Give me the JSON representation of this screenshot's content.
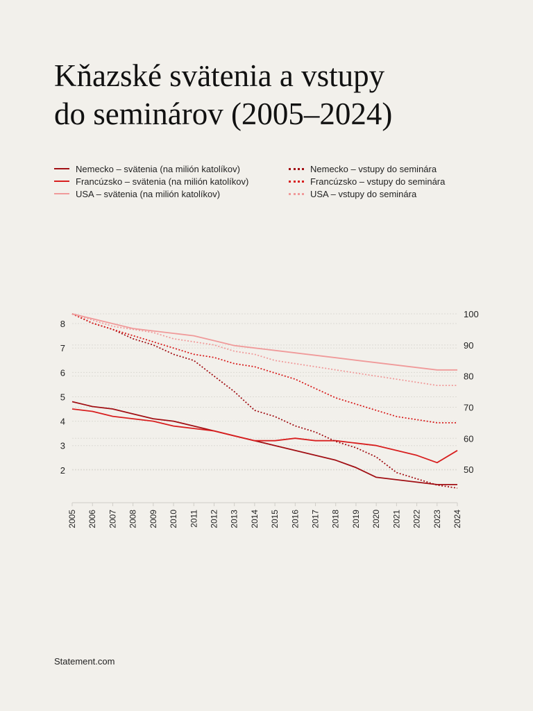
{
  "title_lines": [
    "Kňazské svätenia a vstupy",
    "do seminárov (2005–2024)"
  ],
  "footer": "Statement.com",
  "colors": {
    "background": "#f2f0eb",
    "germany": "#a10f14",
    "france": "#d81e1e",
    "usa": "#f09a9a",
    "grid": "#dcdad4",
    "axis": "#cfcdc7"
  },
  "chart_data": {
    "type": "line",
    "x": [
      2005,
      2006,
      2007,
      2008,
      2009,
      2010,
      2011,
      2012,
      2013,
      2014,
      2015,
      2016,
      2017,
      2018,
      2019,
      2020,
      2021,
      2022,
      2023,
      2024
    ],
    "left_axis": {
      "ylim": [
        1,
        8.4
      ],
      "ticks": [
        2,
        3,
        4,
        5,
        6,
        7,
        8
      ]
    },
    "right_axis": {
      "ylim": [
        42,
        100
      ],
      "ticks": [
        50,
        60,
        70,
        80,
        90,
        100
      ]
    },
    "series": [
      {
        "name": "Nemecko – svätenia (na milión katolíkov)",
        "axis": "left",
        "style": "solid",
        "color": "#a10f14",
        "values": [
          4.8,
          4.6,
          4.5,
          4.3,
          4.1,
          4.0,
          3.8,
          3.6,
          3.4,
          3.2,
          3.0,
          2.8,
          2.6,
          2.4,
          2.1,
          1.7,
          1.6,
          1.5,
          1.4,
          1.4
        ]
      },
      {
        "name": "Francúzsko – svätenia (na milión katolíkov)",
        "axis": "left",
        "style": "solid",
        "color": "#d81e1e",
        "values": [
          4.5,
          4.4,
          4.2,
          4.1,
          4.0,
          3.8,
          3.7,
          3.6,
          3.4,
          3.2,
          3.2,
          3.3,
          3.2,
          3.2,
          3.1,
          3.0,
          2.8,
          2.6,
          2.3,
          2.8
        ]
      },
      {
        "name": "USA – svätenia (na milión katolíkov)",
        "axis": "left",
        "style": "solid",
        "color": "#f09a9a",
        "values": [
          8.4,
          8.2,
          8.0,
          7.8,
          7.7,
          7.6,
          7.5,
          7.3,
          7.1,
          7.0,
          6.9,
          6.8,
          6.7,
          6.6,
          6.5,
          6.4,
          6.3,
          6.2,
          6.1,
          6.1
        ]
      },
      {
        "name": "Nemecko – vstupy do seminára",
        "axis": "right",
        "style": "dotted",
        "color": "#a10f14",
        "values": [
          100,
          97,
          95,
          92,
          90,
          87,
          85,
          80,
          75,
          69,
          67,
          64,
          62,
          59,
          57,
          54,
          49,
          47,
          45,
          44
        ]
      },
      {
        "name": "Francúzsko – vstupy do seminára",
        "axis": "right",
        "style": "dotted",
        "color": "#d81e1e",
        "values": [
          100,
          97,
          95,
          93,
          91,
          89,
          87,
          86,
          84,
          83,
          81,
          79,
          76,
          73,
          71,
          69,
          67,
          66,
          65,
          65
        ]
      },
      {
        "name": "USA – vstupy do seminára",
        "axis": "right",
        "style": "dotted",
        "color": "#f09a9a",
        "values": [
          100,
          98,
          96,
          95,
          94,
          92,
          91,
          90,
          88,
          87,
          85,
          84,
          83,
          82,
          81,
          80,
          79,
          78,
          77,
          77
        ]
      }
    ]
  }
}
